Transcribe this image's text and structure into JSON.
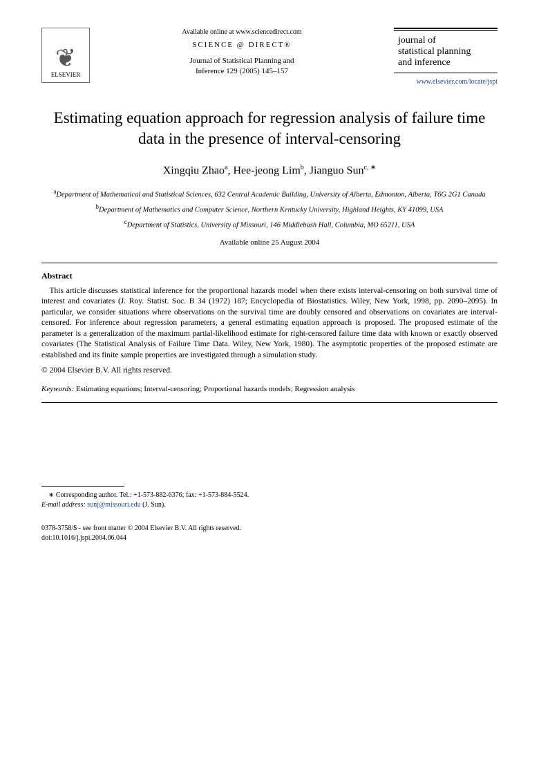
{
  "header": {
    "publisher_name": "ELSEVIER",
    "available_text": "Available online at www.sciencedirect.com",
    "sd_logo_text": "SCIENCE @ DIRECT®",
    "journal_ref_line1": "Journal of Statistical Planning and",
    "journal_ref_line2": "Inference 129 (2005) 145–157",
    "journal_name_line1": "journal of",
    "journal_name_line2": "statistical planning",
    "journal_name_line3": "and inference",
    "journal_url": "www.elsevier.com/locate/jspi"
  },
  "title": "Estimating equation approach for regression analysis of failure time data in the presence of interval-censoring",
  "authors": {
    "a1_name": "Xingqiu Zhao",
    "a1_sup": "a",
    "a2_name": "Hee-jeong Lim",
    "a2_sup": "b",
    "a3_name": "Jianguo Sun",
    "a3_sup": "c, ∗"
  },
  "affiliations": {
    "a_sup": "a",
    "a_text": "Department of Mathematical and Statistical Sciences, 632 Central Academic Building, University of Alberta, Edmonton, Alberta, T6G 2G1 Canada",
    "b_sup": "b",
    "b_text": "Department of Mathematics and Computer Science, Northern Kentucky University, Highland Heights, KY 41099, USA",
    "c_sup": "c",
    "c_text": "Department of Statistics, University of Missouri, 146 Middlebush Hall, Columbia, MO 65211, USA"
  },
  "available_date": "Available online 25 August 2004",
  "abstract": {
    "heading": "Abstract",
    "body": "This article discusses statistical inference for the proportional hazards model when there exists interval-censoring on both survival time of interest and covariates (J. Roy. Statist. Soc. B 34 (1972) 187; Encyclopedia of Biostatistics. Wiley, New York, 1998, pp. 2090–2095). In particular, we consider situations where observations on the survival time are doubly censored and observations on covariates are interval-censored. For inference about regression parameters, a general estimating equation approach is proposed. The proposed estimate of the parameter is a generalization of the maximum partial-likelihood estimate for right-censored failure time data with known or exactly observed covariates (The Statistical Analysis of Failure Time Data. Wiley, New York, 1980). The asymptotic properties of the proposed estimate are established and its finite sample properties are investigated through a simulation study.",
    "copyright": "© 2004 Elsevier B.V. All rights reserved."
  },
  "keywords": {
    "label": "Keywords:",
    "text": " Estimating equations; Interval-censoring; Proportional hazards models; Regression analysis"
  },
  "footnote": {
    "corr_marker": "∗",
    "corr_text": " Corresponding author. Tel.: +1-573-882-6376; fax: +1-573-884-5524.",
    "email_label": "E-mail address:",
    "email": "sunj@missouri.edu",
    "email_suffix": " (J. Sun)."
  },
  "footer": {
    "line1": "0378-3758/$ - see front matter © 2004 Elsevier B.V. All rights reserved.",
    "line2": "doi:10.1016/j.jspi.2004.06.044"
  },
  "colors": {
    "link": "#1a4b8e",
    "text": "#000000",
    "background": "#ffffff"
  }
}
